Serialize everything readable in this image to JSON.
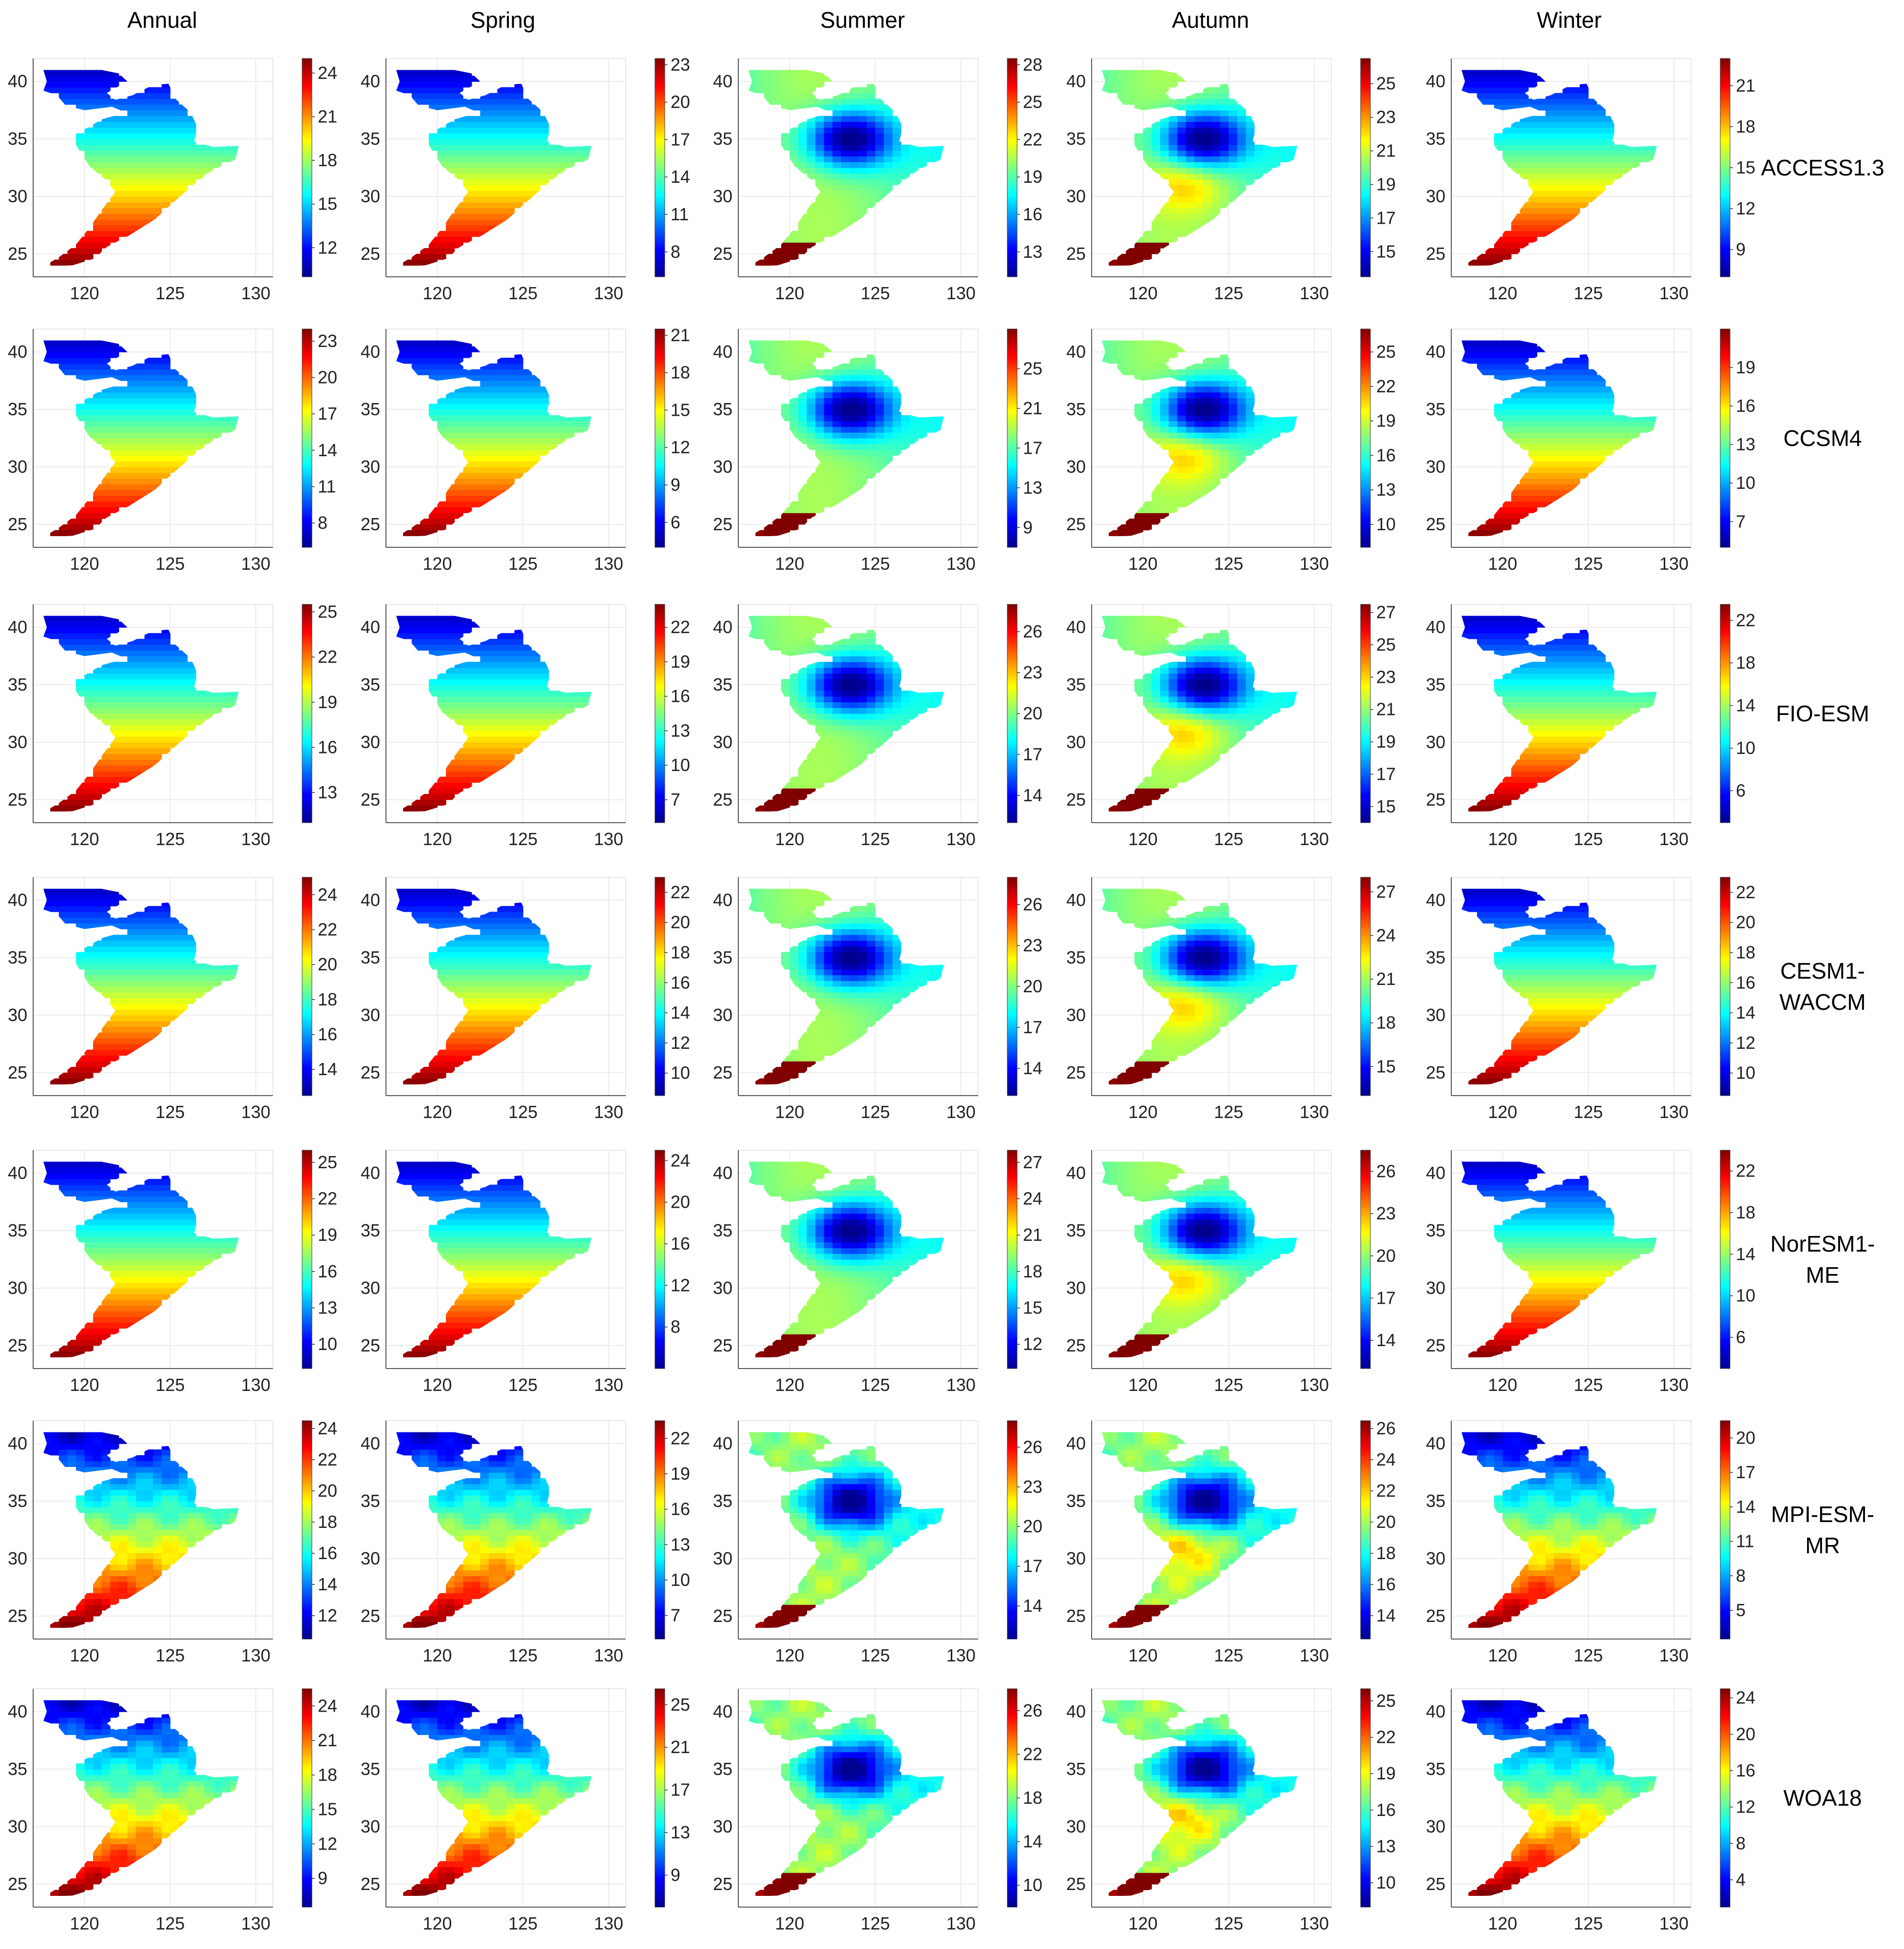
{
  "figure": {
    "column_titles": [
      "Annual",
      "Spring",
      "Summer",
      "Autumn",
      "Winter"
    ],
    "row_labels": [
      [
        "ACCESS1.3"
      ],
      [
        "CCSM4"
      ],
      [
        "FIO-ESM"
      ],
      [
        "CESM1-",
        "WACCM"
      ],
      [
        "NorESM1-",
        "ME"
      ],
      [
        "MPI-ESM-",
        "MR"
      ],
      [
        "WOA18"
      ]
    ],
    "colormap": [
      "#00008f",
      "#0000ff",
      "#0080ff",
      "#00ffff",
      "#80ff80",
      "#ffff00",
      "#ff8000",
      "#ff0000",
      "#800000"
    ]
  },
  "chart_data": {
    "type": "heatmap",
    "description_axes": {
      "x_ticks": [
        120,
        125,
        130
      ],
      "y_ticks": [
        25,
        30,
        35,
        40
      ],
      "xlim": [
        117,
        131
      ],
      "ylim": [
        23,
        42
      ]
    },
    "panels": [
      {
        "model": "ACCESS1.3",
        "season": "Annual",
        "cbar_ticks": [
          12,
          15,
          18,
          21,
          24
        ],
        "cbar_range": [
          10,
          25
        ]
      },
      {
        "model": "ACCESS1.3",
        "season": "Spring",
        "cbar_ticks": [
          8,
          11,
          14,
          17,
          20,
          23
        ],
        "cbar_range": [
          6,
          23.5
        ]
      },
      {
        "model": "ACCESS1.3",
        "season": "Summer",
        "cbar_ticks": [
          13,
          16,
          19,
          22,
          25,
          28
        ],
        "cbar_range": [
          11,
          28.5
        ]
      },
      {
        "model": "ACCESS1.3",
        "season": "Autumn",
        "cbar_ticks": [
          15,
          17,
          19,
          21,
          23,
          25
        ],
        "cbar_range": [
          13.5,
          26.5
        ]
      },
      {
        "model": "ACCESS1.3",
        "season": "Winter",
        "cbar_ticks": [
          9,
          12,
          15,
          18,
          21
        ],
        "cbar_range": [
          7,
          23
        ]
      },
      {
        "model": "CCSM4",
        "season": "Annual",
        "cbar_ticks": [
          8,
          11,
          14,
          17,
          20,
          23
        ],
        "cbar_range": [
          6,
          24
        ]
      },
      {
        "model": "CCSM4",
        "season": "Spring",
        "cbar_ticks": [
          6,
          9,
          12,
          15,
          18,
          21
        ],
        "cbar_range": [
          4,
          21.5
        ]
      },
      {
        "model": "CCSM4",
        "season": "Summer",
        "cbar_ticks": [
          9,
          13,
          17,
          21,
          25
        ],
        "cbar_range": [
          7,
          29
        ]
      },
      {
        "model": "CCSM4",
        "season": "Autumn",
        "cbar_ticks": [
          10,
          13,
          16,
          19,
          22,
          25
        ],
        "cbar_range": [
          8,
          27
        ]
      },
      {
        "model": "CCSM4",
        "season": "Winter",
        "cbar_ticks": [
          7,
          10,
          13,
          16,
          19
        ],
        "cbar_range": [
          5,
          22
        ]
      },
      {
        "model": "FIO-ESM",
        "season": "Annual",
        "cbar_ticks": [
          13,
          16,
          19,
          22,
          25
        ],
        "cbar_range": [
          11,
          25.5
        ]
      },
      {
        "model": "FIO-ESM",
        "season": "Spring",
        "cbar_ticks": [
          7,
          10,
          13,
          16,
          19,
          22
        ],
        "cbar_range": [
          5,
          24
        ]
      },
      {
        "model": "FIO-ESM",
        "season": "Summer",
        "cbar_ticks": [
          14,
          17,
          20,
          23,
          26
        ],
        "cbar_range": [
          12,
          28
        ]
      },
      {
        "model": "FIO-ESM",
        "season": "Autumn",
        "cbar_ticks": [
          15,
          17,
          19,
          21,
          23,
          25,
          27
        ],
        "cbar_range": [
          14,
          27.5
        ]
      },
      {
        "model": "FIO-ESM",
        "season": "Winter",
        "cbar_ticks": [
          6,
          10,
          14,
          18,
          22
        ],
        "cbar_range": [
          3,
          23.5
        ]
      },
      {
        "model": "CESM1-WACCM",
        "season": "Annual",
        "cbar_ticks": [
          14,
          16,
          18,
          20,
          22,
          24
        ],
        "cbar_range": [
          12.5,
          25
        ]
      },
      {
        "model": "CESM1-WACCM",
        "season": "Spring",
        "cbar_ticks": [
          10,
          12,
          14,
          16,
          18,
          20,
          22
        ],
        "cbar_range": [
          8.5,
          23
        ]
      },
      {
        "model": "CESM1-WACCM",
        "season": "Summer",
        "cbar_ticks": [
          14,
          17,
          20,
          23,
          26
        ],
        "cbar_range": [
          12,
          28
        ]
      },
      {
        "model": "CESM1-WACCM",
        "season": "Autumn",
        "cbar_ticks": [
          15,
          18,
          21,
          24,
          27
        ],
        "cbar_range": [
          13,
          28
        ]
      },
      {
        "model": "CESM1-WACCM",
        "season": "Winter",
        "cbar_ticks": [
          10,
          12,
          14,
          16,
          18,
          20,
          22
        ],
        "cbar_range": [
          8.5,
          23
        ]
      },
      {
        "model": "NorESM1-ME",
        "season": "Annual",
        "cbar_ticks": [
          10,
          13,
          16,
          19,
          22,
          25
        ],
        "cbar_range": [
          8,
          26
        ]
      },
      {
        "model": "NorESM1-ME",
        "season": "Spring",
        "cbar_ticks": [
          8,
          12,
          16,
          20,
          24
        ],
        "cbar_range": [
          4,
          25
        ]
      },
      {
        "model": "NorESM1-ME",
        "season": "Summer",
        "cbar_ticks": [
          12,
          15,
          18,
          21,
          24,
          27
        ],
        "cbar_range": [
          10,
          28
        ]
      },
      {
        "model": "NorESM1-ME",
        "season": "Autumn",
        "cbar_ticks": [
          14,
          17,
          20,
          23,
          26
        ],
        "cbar_range": [
          12,
          27.5
        ]
      },
      {
        "model": "NorESM1-ME",
        "season": "Winter",
        "cbar_ticks": [
          6,
          10,
          14,
          18,
          22
        ],
        "cbar_range": [
          3,
          24
        ]
      },
      {
        "model": "MPI-ESM-MR",
        "season": "Annual",
        "cbar_ticks": [
          12,
          14,
          16,
          18,
          20,
          22,
          24
        ],
        "cbar_range": [
          10.5,
          24.5
        ]
      },
      {
        "model": "MPI-ESM-MR",
        "season": "Spring",
        "cbar_ticks": [
          7,
          10,
          13,
          16,
          19,
          22
        ],
        "cbar_range": [
          5,
          23.5
        ]
      },
      {
        "model": "MPI-ESM-MR",
        "season": "Summer",
        "cbar_ticks": [
          14,
          17,
          20,
          23,
          26
        ],
        "cbar_range": [
          11.5,
          28
        ]
      },
      {
        "model": "MPI-ESM-MR",
        "season": "Autumn",
        "cbar_ticks": [
          14,
          16,
          18,
          20,
          22,
          24,
          26
        ],
        "cbar_range": [
          12.5,
          26.5
        ]
      },
      {
        "model": "MPI-ESM-MR",
        "season": "Winter",
        "cbar_ticks": [
          5,
          8,
          11,
          14,
          17,
          20
        ],
        "cbar_range": [
          2.5,
          21.5
        ]
      },
      {
        "model": "WOA18",
        "season": "Annual",
        "cbar_ticks": [
          9,
          12,
          15,
          18,
          21,
          24
        ],
        "cbar_range": [
          6.5,
          25.5
        ]
      },
      {
        "model": "WOA18",
        "season": "Spring",
        "cbar_ticks": [
          9,
          13,
          17,
          21,
          25
        ],
        "cbar_range": [
          6,
          26.5
        ]
      },
      {
        "model": "WOA18",
        "season": "Summer",
        "cbar_ticks": [
          10,
          14,
          18,
          22,
          26
        ],
        "cbar_range": [
          8,
          28
        ]
      },
      {
        "model": "WOA18",
        "season": "Autumn",
        "cbar_ticks": [
          10,
          13,
          16,
          19,
          22,
          25
        ],
        "cbar_range": [
          8,
          26
        ]
      },
      {
        "model": "WOA18",
        "season": "Winter",
        "cbar_ticks": [
          4,
          8,
          12,
          16,
          20,
          24
        ],
        "cbar_range": [
          1,
          25
        ]
      }
    ]
  }
}
